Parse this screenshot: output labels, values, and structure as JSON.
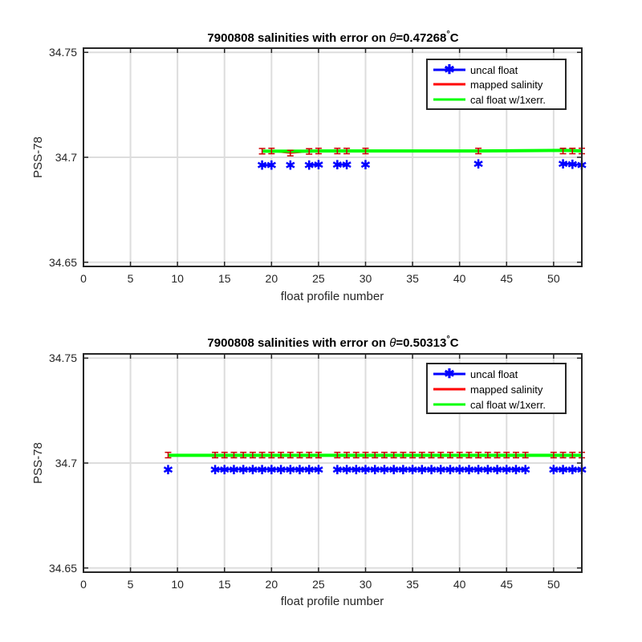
{
  "chart_data": [
    {
      "type": "line",
      "title_main": "7900808 salinities with error on ",
      "title_theta": "θ",
      "title_value": "=0.47268",
      "title_deg": "°",
      "title_unit": "C",
      "xlabel": "float profile number",
      "ylabel": "PSS-78",
      "xlim": [
        0,
        53
      ],
      "ylim": [
        34.648,
        34.752
      ],
      "xticks": [
        0,
        5,
        10,
        15,
        20,
        25,
        30,
        35,
        40,
        45,
        50
      ],
      "yticks": [
        34.65,
        34.7,
        34.75
      ],
      "ytick_labels": [
        "34.65",
        "34.7",
        "34.75"
      ],
      "grid": true,
      "legend_position": "top-right",
      "legend": [
        "uncal float",
        "mapped salinity",
        "cal float w/1xerr."
      ],
      "colors": {
        "uncal": "#0000ff",
        "mapped": "#ff0000",
        "cal": "#00ff00",
        "errorbar": "#cc0000"
      },
      "series": [
        {
          "name": "uncal float",
          "x": [
            19,
            20,
            22,
            24,
            25,
            27,
            28,
            30,
            42,
            51,
            52,
            53
          ],
          "values": [
            34.6963,
            34.6963,
            34.6963,
            34.6963,
            34.6965,
            34.6965,
            34.6965,
            34.6965,
            34.697,
            34.697,
            34.6967,
            34.6963
          ]
        },
        {
          "name": "mapped salinity",
          "x": [
            19,
            20,
            22,
            24,
            25,
            27,
            28,
            30,
            42,
            51,
            52,
            53
          ],
          "values": [
            34.7029,
            34.703,
            34.702,
            34.7028,
            34.703,
            34.703,
            34.703,
            34.703,
            34.703,
            34.703,
            34.703,
            34.703
          ],
          "errors": [
            0.0013,
            0.0013,
            0.0013,
            0.0013,
            0.0013,
            0.0013,
            0.0013,
            0.0013,
            0.0013,
            0.0013,
            0.0013,
            0.0013
          ]
        },
        {
          "name": "cal float w/1xerr.",
          "x": [
            19,
            20,
            22,
            24,
            25,
            27,
            28,
            30,
            42,
            51,
            52,
            53
          ],
          "values": [
            34.7029,
            34.7029,
            34.7029,
            34.7029,
            34.703,
            34.703,
            34.703,
            34.703,
            34.703,
            34.7033,
            34.7032,
            34.703
          ]
        }
      ]
    },
    {
      "type": "line",
      "title_main": "7900808 salinities with error on ",
      "title_theta": "θ",
      "title_value": "=0.50313",
      "title_deg": "°",
      "title_unit": "C",
      "xlabel": "float profile number",
      "ylabel": "PSS-78",
      "xlim": [
        0,
        53
      ],
      "ylim": [
        34.648,
        34.752
      ],
      "xticks": [
        0,
        5,
        10,
        15,
        20,
        25,
        30,
        35,
        40,
        45,
        50
      ],
      "yticks": [
        34.65,
        34.7,
        34.75
      ],
      "ytick_labels": [
        "34.65",
        "34.7",
        "34.75"
      ],
      "grid": true,
      "legend_position": "top-right",
      "legend": [
        "uncal float",
        "mapped salinity",
        "cal float w/1xerr."
      ],
      "colors": {
        "uncal": "#0000ff",
        "mapped": "#ff0000",
        "cal": "#00ff00",
        "errorbar": "#cc0000"
      },
      "series": [
        {
          "name": "uncal float",
          "x": [
            9,
            14,
            15,
            16,
            17,
            18,
            19,
            20,
            21,
            22,
            23,
            24,
            25,
            27,
            28,
            29,
            30,
            31,
            32,
            33,
            34,
            35,
            36,
            37,
            38,
            39,
            40,
            41,
            42,
            43,
            44,
            45,
            46,
            47,
            50,
            51,
            52,
            53
          ],
          "values": [
            34.697,
            34.697,
            34.697,
            34.697,
            34.697,
            34.697,
            34.697,
            34.697,
            34.697,
            34.697,
            34.697,
            34.697,
            34.697,
            34.697,
            34.697,
            34.697,
            34.697,
            34.697,
            34.697,
            34.697,
            34.697,
            34.697,
            34.697,
            34.697,
            34.697,
            34.697,
            34.697,
            34.697,
            34.697,
            34.697,
            34.697,
            34.697,
            34.697,
            34.697,
            34.697,
            34.697,
            34.697,
            34.697
          ]
        },
        {
          "name": "mapped salinity",
          "x": [
            9,
            14,
            15,
            16,
            17,
            18,
            19,
            20,
            21,
            22,
            23,
            24,
            25,
            27,
            28,
            29,
            30,
            31,
            32,
            33,
            34,
            35,
            36,
            37,
            38,
            39,
            40,
            41,
            42,
            43,
            44,
            45,
            46,
            47,
            50,
            51,
            52,
            53
          ],
          "values": [
            34.7038,
            34.7038,
            34.7038,
            34.7038,
            34.7038,
            34.7038,
            34.7038,
            34.7038,
            34.7038,
            34.7038,
            34.7038,
            34.7038,
            34.7038,
            34.7038,
            34.7038,
            34.7038,
            34.7038,
            34.7038,
            34.7038,
            34.7038,
            34.7038,
            34.7038,
            34.7038,
            34.7038,
            34.7038,
            34.7038,
            34.7038,
            34.7038,
            34.7038,
            34.7038,
            34.7038,
            34.7038,
            34.7038,
            34.7038,
            34.7038,
            34.7038,
            34.7038,
            34.7038
          ],
          "errors": [
            0.0013,
            0.0013,
            0.0013,
            0.0013,
            0.0013,
            0.0013,
            0.0013,
            0.0013,
            0.0013,
            0.0013,
            0.0013,
            0.0013,
            0.0013,
            0.0013,
            0.0013,
            0.0013,
            0.0013,
            0.0013,
            0.0013,
            0.0013,
            0.0013,
            0.0013,
            0.0013,
            0.0013,
            0.0013,
            0.0013,
            0.0013,
            0.0013,
            0.0013,
            0.0013,
            0.0013,
            0.0013,
            0.0013,
            0.0013,
            0.0013,
            0.0013,
            0.0013,
            0.0013
          ]
        },
        {
          "name": "cal float w/1xerr.",
          "x": [
            9,
            14,
            15,
            16,
            17,
            18,
            19,
            20,
            21,
            22,
            23,
            24,
            25,
            27,
            28,
            29,
            30,
            31,
            32,
            33,
            34,
            35,
            36,
            37,
            38,
            39,
            40,
            41,
            42,
            43,
            44,
            45,
            46,
            47,
            50,
            51,
            52,
            53
          ],
          "values": [
            34.7037,
            34.7037,
            34.7037,
            34.7037,
            34.7037,
            34.7037,
            34.7037,
            34.7037,
            34.7037,
            34.7037,
            34.7037,
            34.7037,
            34.7037,
            34.7037,
            34.7037,
            34.7037,
            34.7037,
            34.7037,
            34.7037,
            34.7037,
            34.7037,
            34.7037,
            34.7037,
            34.7037,
            34.7037,
            34.7037,
            34.7037,
            34.7037,
            34.7037,
            34.7037,
            34.7037,
            34.7037,
            34.7037,
            34.7037,
            34.7037,
            34.7037,
            34.7037,
            34.7037
          ]
        }
      ]
    }
  ]
}
